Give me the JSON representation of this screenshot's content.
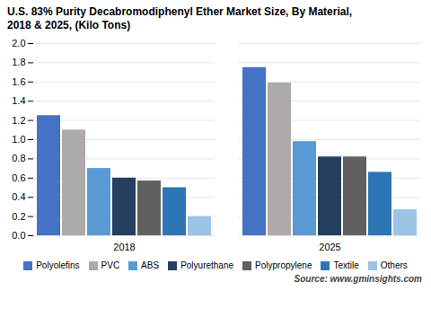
{
  "chart_data": {
    "type": "bar",
    "title": "U.S. 83% Purity Decabromodiphenyl Ether Market Size, By Material,\n2018 & 2025, (Kilo Tons)",
    "categories": [
      "2018",
      "2025"
    ],
    "series": [
      {
        "name": "Polyolefins",
        "color": "#4472C4",
        "values": [
          1.25,
          1.75
        ]
      },
      {
        "name": "PVC",
        "color": "#AEAAAA",
        "values": [
          1.1,
          1.59
        ]
      },
      {
        "name": "ABS",
        "color": "#5B9BD5",
        "values": [
          0.7,
          0.98
        ]
      },
      {
        "name": "Polyurethane",
        "color": "#243F60",
        "values": [
          0.6,
          0.82
        ]
      },
      {
        "name": "Polypropylene",
        "color": "#606060",
        "values": [
          0.57,
          0.82
        ]
      },
      {
        "name": "Textile",
        "color": "#2E75B6",
        "values": [
          0.5,
          0.66
        ]
      },
      {
        "name": "Others",
        "color": "#9DC3E6",
        "values": [
          0.2,
          0.27
        ]
      }
    ],
    "ylim": [
      0,
      2.0
    ],
    "yticks": [
      {
        "value": 0,
        "label": "0.0"
      },
      0.2,
      0.4,
      0.6,
      0.8,
      {
        "value": 1,
        "label": "1.0"
      },
      1.2,
      1.4,
      1.6,
      1.8,
      {
        "value": 2,
        "label": "2.0"
      }
    ],
    "grid": true,
    "legend": "bottom",
    "annotations": [
      "Source: www.gminsights.com"
    ]
  }
}
